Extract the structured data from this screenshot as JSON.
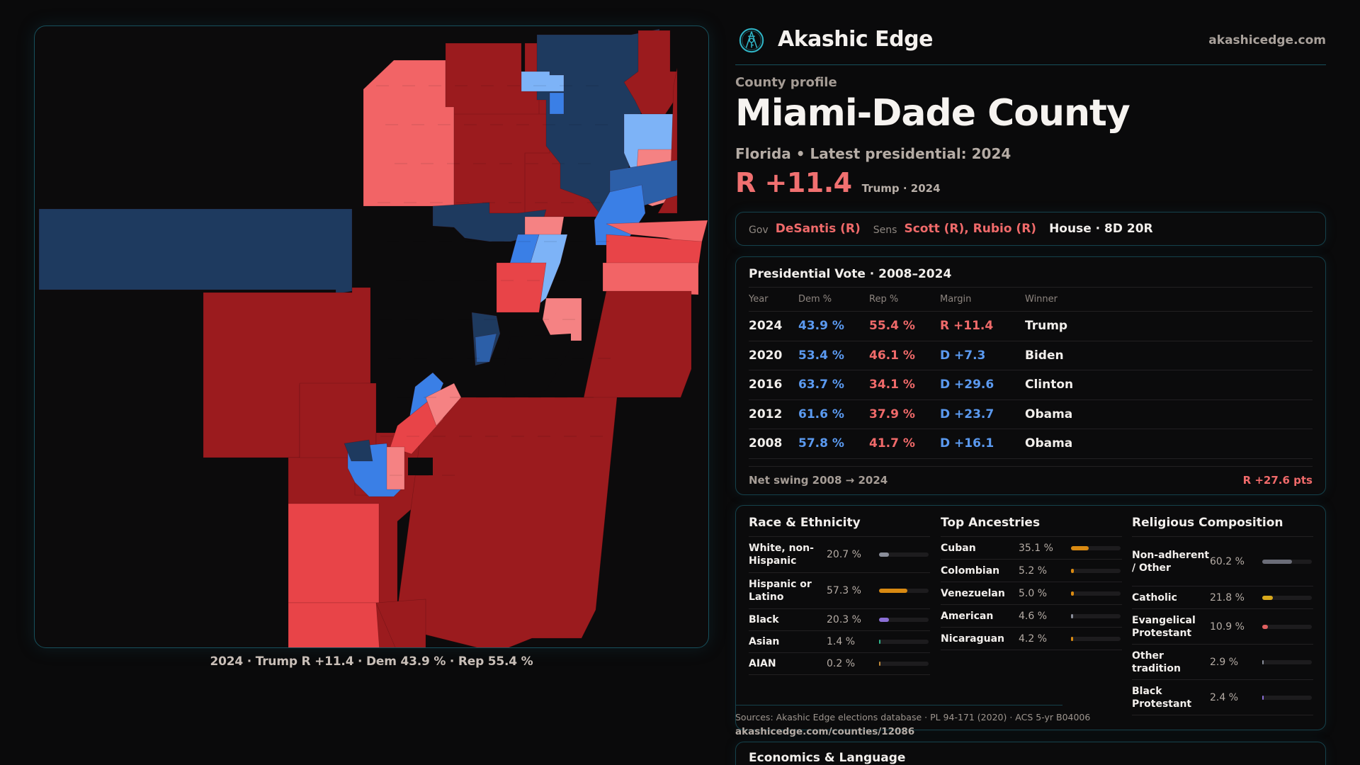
{
  "brand": {
    "name": "Akashic Edge",
    "url": "akashicedge.com",
    "logo_icon": "compass-key-emblem-icon",
    "accent": "#2fb3c4"
  },
  "profile": {
    "eyebrow": "County profile",
    "title": "Miami-Dade County",
    "subtitle": "Florida • Latest presidential: 2024",
    "margin": "R +11.4",
    "margin_sub": "Trump · 2024",
    "margin_color": "#f06a6a"
  },
  "officials": {
    "gov_label": "Gov",
    "gov": "DeSantis (R)",
    "sens_label": "Sens",
    "sens": "Scott (R), Rubio (R)",
    "house": "House · 8D 20R"
  },
  "presidential": {
    "title": "Presidential Vote · 2008–2024",
    "headers": {
      "year": "Year",
      "dem": "Dem %",
      "rep": "Rep %",
      "margin": "Margin",
      "winner": "Winner"
    },
    "rows": [
      {
        "year": "2024",
        "dem": "43.9 %",
        "rep": "55.4 %",
        "margin": "R +11.4",
        "party": "r",
        "winner": "Trump"
      },
      {
        "year": "2020",
        "dem": "53.4 %",
        "rep": "46.1 %",
        "margin": "D +7.3",
        "party": "d",
        "winner": "Biden"
      },
      {
        "year": "2016",
        "dem": "63.7 %",
        "rep": "34.1 %",
        "margin": "D +29.6",
        "party": "d",
        "winner": "Clinton"
      },
      {
        "year": "2012",
        "dem": "61.6 %",
        "rep": "37.9 %",
        "margin": "D +23.7",
        "party": "d",
        "winner": "Obama"
      },
      {
        "year": "2008",
        "dem": "57.8 %",
        "rep": "41.7 %",
        "margin": "D +16.1",
        "party": "d",
        "winner": "Obama"
      }
    ],
    "swing_label": "Net swing 2008 → 2024",
    "swing_value": "R +27.6 pts"
  },
  "demographics": {
    "race": {
      "title": "Race & Ethnicity",
      "items": [
        {
          "label": "White, non-Hispanic",
          "value": "20.7 %",
          "pct": 20.7,
          "color": "#8a8e9a"
        },
        {
          "label": "Hispanic or Latino",
          "value": "57.3 %",
          "pct": 57.3,
          "color": "#d98a12"
        },
        {
          "label": "Black",
          "value": "20.3 %",
          "pct": 20.3,
          "color": "#8b6fd6"
        },
        {
          "label": "Asian",
          "value": "1.4 %",
          "pct": 1.4,
          "color": "#2fb38a"
        },
        {
          "label": "AIAN",
          "value": "0.2 %",
          "pct": 0.2,
          "color": "#c08a3a"
        }
      ]
    },
    "ancestry": {
      "title": "Top Ancestries",
      "items": [
        {
          "label": "Cuban",
          "value": "35.1 %",
          "pct": 35.1,
          "color": "#d98a12"
        },
        {
          "label": "Colombian",
          "value": "5.2 %",
          "pct": 5.2,
          "color": "#d98a12"
        },
        {
          "label": "Venezuelan",
          "value": "5.0 %",
          "pct": 5.0,
          "color": "#d98a12"
        },
        {
          "label": "American",
          "value": "4.6 %",
          "pct": 4.6,
          "color": "#8a8e9a"
        },
        {
          "label": "Nicaraguan",
          "value": "4.2 %",
          "pct": 4.2,
          "color": "#d98a12"
        }
      ]
    },
    "religion": {
      "title": "Religious Composition",
      "items": [
        {
          "label": "Non-adherent / Other",
          "value": "60.2 %",
          "pct": 60.2,
          "color": "#6b6d78"
        },
        {
          "label": "Catholic",
          "value": "21.8 %",
          "pct": 21.8,
          "color": "#d9a91c"
        },
        {
          "label": "Evangelical Protestant",
          "value": "10.9 %",
          "pct": 10.9,
          "color": "#e06060"
        },
        {
          "label": "Other tradition",
          "value": "2.9 %",
          "pct": 2.9,
          "color": "#8a8e9a"
        },
        {
          "label": "Black Protestant",
          "value": "2.4 %",
          "pct": 2.4,
          "color": "#8b6fd6"
        }
      ]
    }
  },
  "sources": "Sources: Akashic Edge elections database · PL 94-171 (2020) · ACS 5-yr B04006",
  "source_url": "akashicedge.com/counties/12086",
  "economics": {
    "title": "Economics & Language"
  },
  "map": {
    "caption": "2024 · Trump R +11.4 · Dem 43.9 % · Rep 55.4 %",
    "palette": {
      "safe_r": "#9b1b1e",
      "likely_r": "#c7282c",
      "lean_r": "#e84448",
      "tilt_r": "#f26466",
      "soft_r": "#f58283",
      "safe_d": "#1e3a5f",
      "likely_d": "#2c5fa8",
      "lean_d": "#3a7fe6",
      "tilt_d": "#7db3f7"
    }
  }
}
